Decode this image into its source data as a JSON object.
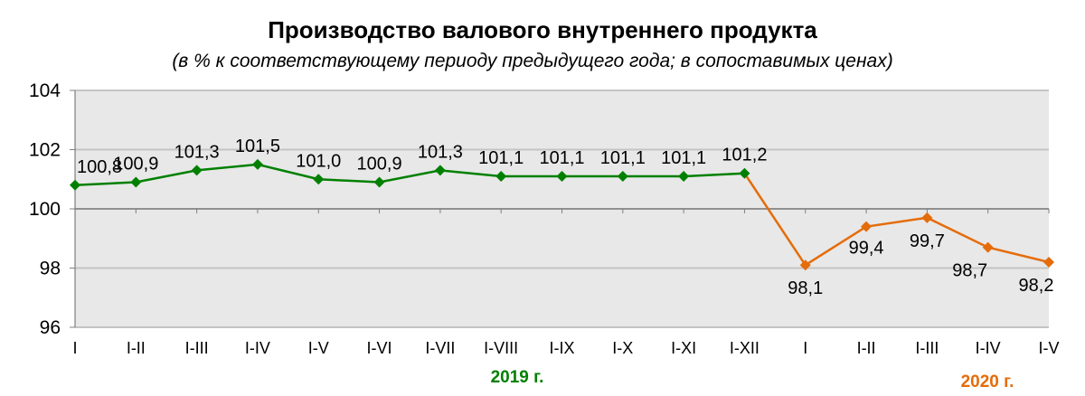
{
  "chart_data": {
    "type": "line",
    "title": "Производство валового внутреннего продукта",
    "subtitle": "(в % к соответствующему периоду предыдущего года; в сопоставимых ценах)",
    "xlabel": "",
    "ylabel": "",
    "ylim": [
      96,
      104
    ],
    "yticks": [
      "96",
      "98",
      "100",
      "102",
      "104"
    ],
    "grid": true,
    "x_axis_crosses_at": 100,
    "categories": [
      "I",
      "I-II",
      "I-III",
      "I-IV",
      "I-V",
      "I-VI",
      "I-VII",
      "I-VIII",
      "I-IX",
      "I-X",
      "I-XI",
      "I-XII",
      "I",
      "I-II",
      "I-III",
      "I-IV",
      "I-V"
    ],
    "series": [
      {
        "name": "2019 г.",
        "color": "#008000",
        "categories_index": [
          0,
          11
        ],
        "values": [
          100.8,
          100.9,
          101.3,
          101.5,
          101.0,
          100.9,
          101.3,
          101.1,
          101.1,
          101.1,
          101.1,
          101.2
        ],
        "labels": [
          "100,8",
          "100,9",
          "101,3",
          "101,5",
          "101,0",
          "100,9",
          "101,3",
          "101,1",
          "101,1",
          "101,1",
          "101,1",
          "101,2"
        ]
      },
      {
        "name": "2020 г.",
        "color": "#E46C0A",
        "categories_index": [
          12,
          16
        ],
        "values": [
          98.1,
          99.4,
          99.7,
          98.7,
          98.2
        ],
        "labels": [
          "98,1",
          "99,4",
          "99,7",
          "98,7",
          "98,2"
        ]
      }
    ],
    "group_labels": [
      {
        "text": "2019 г.",
        "color": "#008000"
      },
      {
        "text": "2020 г.",
        "color": "#E46C0A"
      }
    ],
    "plot_background": "#E8E8E8"
  }
}
